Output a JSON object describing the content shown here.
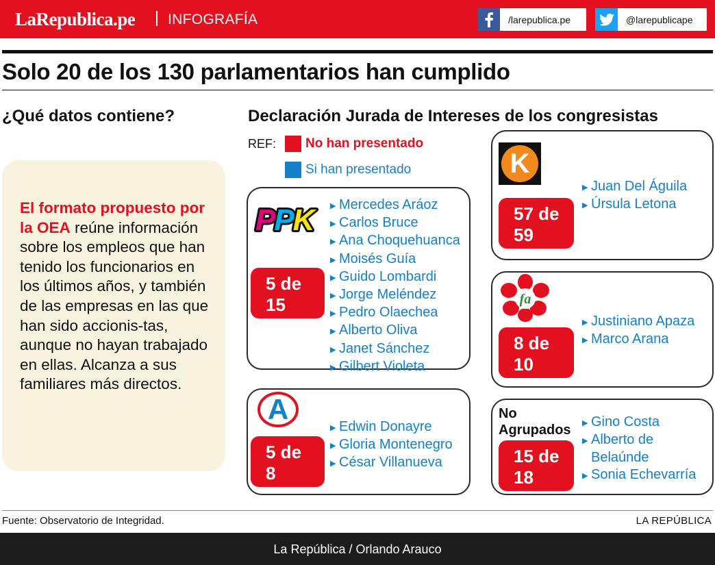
{
  "header": {
    "brand": "LaRepublica.pe",
    "section": "INFOGRAFÍA",
    "facebook": "/larepublica.pe",
    "twitter": "@larepublicape"
  },
  "headline": "Solo 20 de los 130 parlamentarios han cumplido",
  "left": {
    "heading": "¿Qué datos contiene?",
    "highlight": "El formato propuesto por la OEA",
    "body": " reúne información sobre los empleos que han tenido los funcionarios en los últimos años, y también de las empresas en las que han sido accionis-tas, aunque no hayan trabajado en ellas. Alcanza a sus familiares más directos."
  },
  "right": {
    "heading": "Declaración Jurada de Intereses de los congresistas",
    "ref_label": "REF:",
    "legend": [
      {
        "label": "No han presentado",
        "color": "#e3101f"
      },
      {
        "label": "Si han presentado",
        "color": "#1480c8"
      }
    ]
  },
  "parties": {
    "ppk": {
      "logo_text": "PPK",
      "badge_line1": "5 de",
      "badge_line2": "15",
      "names": [
        "Mercedes Aráoz",
        "Carlos Bruce",
        "Ana Choquehuanca",
        "Moisés Guía",
        "Guido Lombardi",
        "Jorge Meléndez",
        "Pedro Olaechea",
        "Alberto Oliva",
        "Janet Sánchez",
        "Gilbert Violeta"
      ]
    },
    "fuerza": {
      "logo_text": "K",
      "badge_line1": "57 de",
      "badge_line2": "59",
      "names": [
        "Juan Del Águila",
        "Úrsula Letona"
      ]
    },
    "frente": {
      "logo_text": "fa",
      "badge_line1": "8 de",
      "badge_line2": "10",
      "names": [
        "Justiniano Apaza",
        "Marco Arana"
      ]
    },
    "apra": {
      "logo_text": "A",
      "badge_line1": "5 de",
      "badge_line2": "8",
      "names": [
        "Edwin Donayre",
        "Gloria Montenegro",
        "César Villanueva"
      ]
    },
    "no_agrupados": {
      "label_line1": "No",
      "label_line2": "Agrupados",
      "badge_line1": "15 de",
      "badge_line2": "18",
      "names": [
        "Gino Costa",
        "Alberto de",
        "Belaúnde",
        "Sonia Echevarría"
      ]
    }
  },
  "footer": {
    "source": "Fuente: Observatorio de Integridad.",
    "credit": "LA REPÚBLICA",
    "byline": "La República / Orlando Arauco"
  },
  "colors": {
    "brand_red": "#e3101f",
    "name_blue": "#1480c8",
    "panel_beige": "#f8f3df"
  }
}
